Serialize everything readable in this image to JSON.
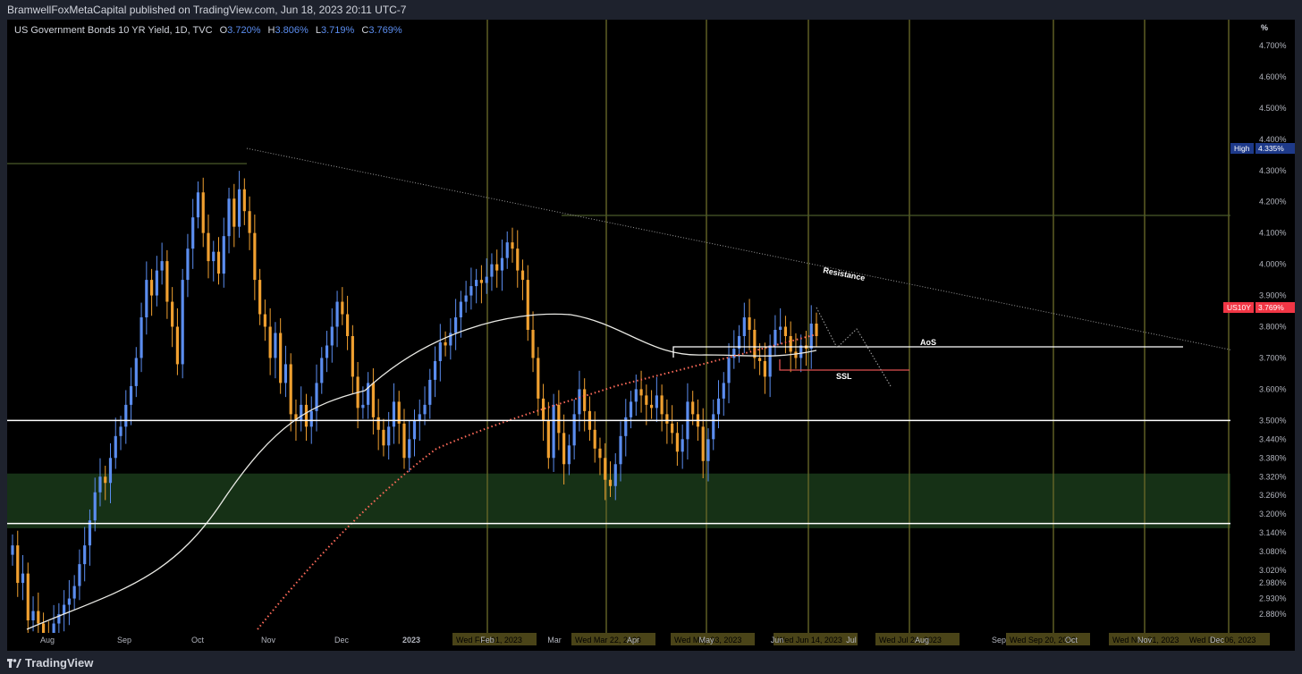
{
  "header": {
    "publisher": "BramwellFoxMetaCapital published on TradingView.com, Jun 18, 2023 20:11 UTC-7"
  },
  "footer": {
    "brand": "TradingView",
    "logo_icon": "tradingview-logo-icon"
  },
  "legend": {
    "symbol": "US Government Bonds 10 YR Yield, 1D, TVC",
    "open_label": "O",
    "open": "3.720%",
    "high_label": "H",
    "high": "3.806%",
    "low_label": "L",
    "low": "3.719%",
    "close_label": "C",
    "close": "3.769%"
  },
  "chart_data": {
    "type": "candlestick",
    "symbol": "US10Y",
    "timeframe": "1D",
    "unit": "%",
    "y_unit_label": "%",
    "ylim": [
      2.82,
      4.76
    ],
    "y_ticks": [
      "4.700%",
      "4.600%",
      "4.500%",
      "4.400%",
      "4.300%",
      "4.200%",
      "4.100%",
      "4.000%",
      "3.900%",
      "3.800%",
      "3.700%",
      "3.600%",
      "3.500%",
      "3.440%",
      "3.380%",
      "3.320%",
      "3.260%",
      "3.200%",
      "3.140%",
      "3.080%",
      "3.020%",
      "2.980%",
      "2.930%",
      "2.880%"
    ],
    "x_ticks": [
      "Aug",
      "Sep",
      "Oct",
      "Nov",
      "Dec",
      "2023",
      "Feb",
      "Mar",
      "Apr",
      "May",
      "Jun",
      "Jul",
      "Aug",
      "Sep",
      "Oct",
      "Nov",
      "Dec"
    ],
    "x_date_labels": [
      "Wed Feb 01, 2023",
      "Wed Mar 22, 2023",
      "Wed May 03, 2023",
      "Wed Jun 14, 2023",
      "Wed Jul 26, 2023",
      "Wed Sep 20, 2023",
      "Wed Nov 01, 2023",
      "Wed Dec 06, 2023"
    ],
    "price_badges": [
      {
        "label": "High",
        "value": "4.335%",
        "color": "#1e3a8a"
      },
      {
        "label": "US10Y",
        "value": "3.769%",
        "color": "#f23645"
      }
    ],
    "closes": [
      3.1,
      2.98,
      3.01,
      2.86,
      2.89,
      2.85,
      2.81,
      2.79,
      2.85,
      2.88,
      2.91,
      2.93,
      2.97,
      3.04,
      3.1,
      3.18,
      3.27,
      3.32,
      3.3,
      3.38,
      3.45,
      3.48,
      3.55,
      3.61,
      3.7,
      3.83,
      3.95,
      3.9,
      3.98,
      4.01,
      3.88,
      3.8,
      3.68,
      3.95,
      4.05,
      4.15,
      4.23,
      4.1,
      4.01,
      4.04,
      3.97,
      4.09,
      4.21,
      4.12,
      4.24,
      4.17,
      4.1,
      3.95,
      3.84,
      3.8,
      3.7,
      3.78,
      3.62,
      3.68,
      3.52,
      3.5,
      3.55,
      3.48,
      3.53,
      3.62,
      3.7,
      3.74,
      3.8,
      3.88,
      3.84,
      3.77,
      3.64,
      3.54,
      3.55,
      3.62,
      3.51,
      3.47,
      3.42,
      3.48,
      3.56,
      3.49,
      3.38,
      3.44,
      3.5,
      3.52,
      3.55,
      3.63,
      3.69,
      3.75,
      3.74,
      3.78,
      3.83,
      3.88,
      3.9,
      3.93,
      3.95,
      3.94,
      3.96,
      4.0,
      3.98,
      4.02,
      4.07,
      4.05,
      3.98,
      3.95,
      3.79,
      3.7,
      3.57,
      3.5,
      3.38,
      3.55,
      3.46,
      3.36,
      3.42,
      3.52,
      3.6,
      3.53,
      3.47,
      3.41,
      3.38,
      3.31,
      3.29,
      3.36,
      3.45,
      3.51,
      3.56,
      3.6,
      3.58,
      3.55,
      3.54,
      3.58,
      3.52,
      3.49,
      3.46,
      3.4,
      3.44,
      3.56,
      3.52,
      3.48,
      3.37,
      3.44,
      3.52,
      3.57,
      3.62,
      3.7,
      3.73,
      3.77,
      3.83,
      3.79,
      3.7,
      3.69,
      3.64,
      3.74,
      3.79,
      3.8,
      3.77,
      3.72,
      3.7,
      3.74,
      3.73,
      3.81,
      3.77
    ],
    "levels": [
      3.5,
      3.17
    ],
    "zone": {
      "from": 3.155,
      "to": 3.33,
      "color": "#1a3a1a"
    },
    "annotations": [
      "Resistance",
      "AoS",
      "SSL"
    ],
    "colors": {
      "up": "#5b8def",
      "down": "#f0a030",
      "ma_long": "#e9e9e4",
      "ma_dotted": "#ff6b5a",
      "trendline": "#9a9a9a",
      "vertical_lines": "#6b6b2a",
      "olive_lines": "#4a5a2a"
    }
  }
}
